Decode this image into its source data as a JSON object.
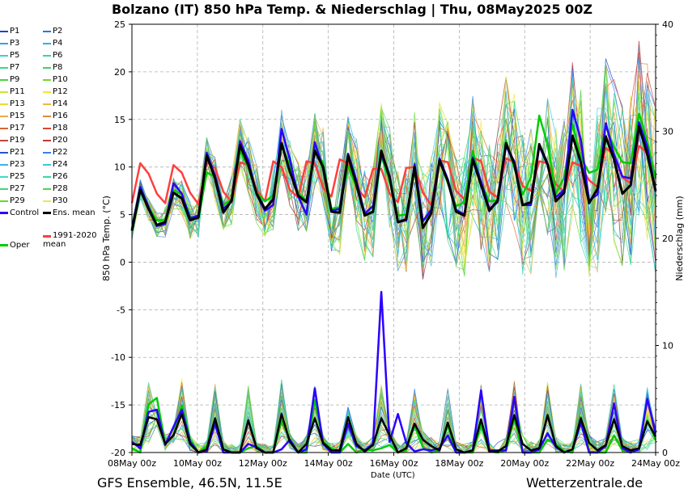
{
  "title": "Bolzano  (IT)  850 hPa Temp. & Niederschlag | Thu, 08May2025 00Z",
  "footer_left": "GFS Ensemble, 46.5N, 11.5E",
  "footer_right": "Wetterzentrale.de",
  "chart_data": {
    "type": "line",
    "title": "Bolzano  (IT)  850 hPa Temp. & Niederschlag | Thu, 08May2025 00Z",
    "xlabel": "Date (UTC)",
    "ylabel": "850 hPa Temp. (°C)",
    "y2label": "Niederschlag (mm)",
    "ylim": [
      -20,
      25
    ],
    "y2lim": [
      0,
      40
    ],
    "grid": true,
    "legend_position": "left",
    "yticks": [
      "25",
      "20",
      "15",
      "10",
      "5",
      "0",
      "-5",
      "-10",
      "-15",
      "-20"
    ],
    "y2ticks": [
      "40",
      "30",
      "20",
      "10",
      "0"
    ],
    "xticks": [
      "08May 00z",
      "10May 00z",
      "12May 00z",
      "14May 00z",
      "16May 00z",
      "18May 00z",
      "20May 00z",
      "22May 00z",
      "24May 00z"
    ],
    "x_hours_step": 12,
    "legend": {
      "members": [
        "P1",
        "P2",
        "P3",
        "P4",
        "P5",
        "P6",
        "P7",
        "P8",
        "P9",
        "P10",
        "P11",
        "P12",
        "P13",
        "P14",
        "P15",
        "P16",
        "P17",
        "P18",
        "P19",
        "P20",
        "P21",
        "P22",
        "P23",
        "P24",
        "P25",
        "P26",
        "P27",
        "P28",
        "P29",
        "P30"
      ],
      "control": "Control",
      "ens_mean": "Ens. mean",
      "climate_mean": "1991-2020 mean",
      "oper": "Oper"
    },
    "member_colors": [
      "#1f3fcf",
      "#2e6fe8",
      "#2fa3e8",
      "#27b7d9",
      "#39d3cf",
      "#2fd8b0",
      "#34d98a",
      "#3bd463",
      "#49d43c",
      "#76d629",
      "#c8e630",
      "#f0e82c",
      "#f2d92e",
      "#f1b83a",
      "#ecaa4a",
      "#e08a3b",
      "#d9652e",
      "#d4463a",
      "#c8443a",
      "#b83c38",
      "#2a52cf",
      "#3b7fe8",
      "#3fb0e9",
      "#37c7e4",
      "#43d8c8",
      "#3ad7a4",
      "#43d67a",
      "#52d44a",
      "#62d92e",
      "#f0e64a"
    ],
    "series": [
      {
        "name": "Ens. mean",
        "color": "#000000",
        "width": 3,
        "values": [
          3.3,
          7.6,
          5.6,
          3.9,
          4.2,
          7.3,
          6.7,
          4.4,
          4.7,
          11.2,
          8.8,
          5.2,
          6.5,
          12.3,
          10.2,
          7.2,
          5.6,
          6.6,
          12.5,
          9.5,
          7.0,
          6.3,
          11.7,
          10.0,
          5.3,
          5.2,
          11.2,
          8.2,
          4.9,
          5.3,
          11.7,
          8.9,
          4.2,
          4.5,
          10.0,
          3.6,
          5.1,
          10.7,
          8.5,
          5.3,
          4.9,
          10.8,
          8.1,
          5.4,
          6.5,
          12.5,
          10.3,
          6.0,
          6.3,
          12.4,
          10.3,
          6.4,
          7.3,
          13.3,
          10.5,
          6.2,
          7.7,
          13.2,
          10.8,
          7.2,
          8.1,
          14.3,
          11.3,
          7.5
        ]
      },
      {
        "name": "Control",
        "color": "#2a00ff",
        "width": 2.5,
        "values": [
          3.5,
          7.9,
          5.8,
          3.8,
          4.0,
          8.3,
          7.2,
          4.6,
          4.9,
          11.5,
          9.1,
          5.6,
          6.4,
          12.7,
          10.7,
          7.1,
          5.4,
          6.0,
          14.0,
          10.8,
          6.9,
          5.0,
          12.6,
          9.8,
          5.4,
          5.6,
          11.4,
          8.6,
          5.1,
          5.9,
          11.3,
          9.1,
          4.2,
          4.4,
          10.3,
          4.3,
          5.5,
          10.9,
          8.7,
          5.5,
          5.0,
          11.0,
          8.5,
          5.6,
          6.3,
          12.2,
          10.6,
          6.0,
          6.0,
          12.2,
          10.2,
          6.8,
          7.6,
          16.0,
          12.9,
          6.5,
          7.1,
          14.6,
          11.3,
          9.0,
          8.8,
          14.7,
          12.1,
          7.4
        ]
      },
      {
        "name": "Oper",
        "color": "#00cc00",
        "width": 2.5,
        "values": [
          3.5,
          8.0,
          5.7,
          4.4,
          4.4,
          7.6,
          7.1,
          4.8,
          4.6,
          9.4,
          9.0,
          6.0,
          6.6,
          11.7,
          10.0,
          7.3,
          6.4,
          7.0,
          12.2,
          10.2,
          7.2,
          6.5,
          11.9,
          10.4,
          5.6,
          5.8,
          10.1,
          7.9,
          5.0,
          5.2,
          11.1,
          8.6,
          4.9,
          5.0,
          9.6,
          4.3,
          5.3,
          10.7,
          8.3,
          5.9,
          6.3,
          11.7,
          8.3,
          6.4,
          6.5,
          12.8,
          9.9,
          7.1,
          8.9,
          15.4,
          12.4,
          7.2,
          8.9,
          14.5,
          11.0,
          9.4,
          9.7,
          14.3,
          12.1,
          10.5,
          10.4,
          15.6,
          12.7,
          8.8
        ]
      },
      {
        "name": "1991-2020 mean",
        "color": "#ff3f3f",
        "width": 2.5,
        "values": [
          6.2,
          10.4,
          9.3,
          7.2,
          6.2,
          10.2,
          9.4,
          7.3,
          6.1,
          10.5,
          9.9,
          7.4,
          6.3,
          10.5,
          10.2,
          7.6,
          6.4,
          10.6,
          10.0,
          7.6,
          6.8,
          10.6,
          10.4,
          7.8,
          6.9,
          10.8,
          10.4,
          7.9,
          6.8,
          9.8,
          9.8,
          7.2,
          6.3,
          9.9,
          10.0,
          7.3,
          6.0,
          10.7,
          10.5,
          7.5,
          6.6,
          11.0,
          10.6,
          7.4,
          6.8,
          10.9,
          10.5,
          8.0,
          7.5,
          10.6,
          10.4,
          8.2,
          7.4,
          10.5,
          10.1,
          8.6,
          7.9,
          12.0,
          11.3,
          8.9,
          8.3,
          12.2,
          11.5,
          9.0
        ]
      },
      {
        "name": "Ens. mean precip",
        "axis": "y2",
        "color": "#000000",
        "width": 2.5,
        "values": [
          0.8,
          0.7,
          3.3,
          3.1,
          0.8,
          1.6,
          3.6,
          0.8,
          0.0,
          0.3,
          3.2,
          0.3,
          0.0,
          0.0,
          3.0,
          0.4,
          0.0,
          0.0,
          3.6,
          1.0,
          0.0,
          0.8,
          3.2,
          0.9,
          0.2,
          0.2,
          3.3,
          0.8,
          0.1,
          0.7,
          3.2,
          1.6,
          0.0,
          0.4,
          2.7,
          1.2,
          0.6,
          0.2,
          2.8,
          0.3,
          0.0,
          0.2,
          3.1,
          0.1,
          0.1,
          0.6,
          3.5,
          0.8,
          0.2,
          0.4,
          3.5,
          0.6,
          0.0,
          0.3,
          3.2,
          0.9,
          0.2,
          0.7,
          3.1,
          0.6,
          0.2,
          0.4,
          2.9,
          1.5
        ]
      },
      {
        "name": "Control precip",
        "axis": "y2",
        "color": "#2a00ff",
        "width": 2.5,
        "values": [
          1.0,
          0.4,
          3.8,
          4.0,
          0.7,
          2.4,
          4.0,
          1.0,
          0.0,
          0.1,
          2.7,
          0.0,
          0.0,
          0.0,
          0.8,
          0.5,
          0.0,
          0.0,
          0.3,
          1.2,
          0.0,
          0.3,
          6.0,
          0.8,
          0.0,
          0.0,
          2.7,
          0.6,
          0.2,
          0.8,
          15.0,
          1.0,
          3.6,
          0.9,
          0.1,
          0.3,
          0.2,
          0.4,
          1.6,
          0.0,
          0.0,
          0.2,
          5.8,
          0.2,
          0.2,
          0.2,
          5.2,
          0.0,
          0.0,
          0.3,
          1.8,
          0.5,
          0.0,
          0.3,
          2.8,
          0.0,
          0.0,
          0.6,
          4.6,
          0.4,
          0.0,
          0.3,
          5.0,
          1.8
        ]
      },
      {
        "name": "Oper precip",
        "axis": "y2",
        "color": "#00cc00",
        "width": 2.5,
        "values": [
          0.4,
          0.0,
          4.5,
          5.1,
          0.8,
          1.6,
          4.4,
          1.2,
          0.0,
          0.6,
          3.1,
          0.3,
          0.0,
          0.0,
          0.4,
          0.6,
          0.0,
          0.0,
          3.0,
          1.2,
          0.0,
          0.0,
          4.9,
          1.0,
          0.4,
          0.0,
          0.8,
          0.0,
          0.3,
          0.2,
          0.4,
          0.7,
          0.0,
          0.2,
          2.5,
          0.5,
          0.0,
          0.2,
          2.5,
          0.0,
          0.0,
          0.0,
          2.6,
          0.1,
          0.0,
          0.2,
          3.2,
          0.0,
          0.0,
          0.0,
          1.2,
          0.8,
          0.1,
          0.0,
          3.3,
          0.1,
          0.0,
          0.0,
          1.6,
          0.2,
          0.0,
          0.4,
          3.0,
          1.2
        ]
      }
    ]
  }
}
